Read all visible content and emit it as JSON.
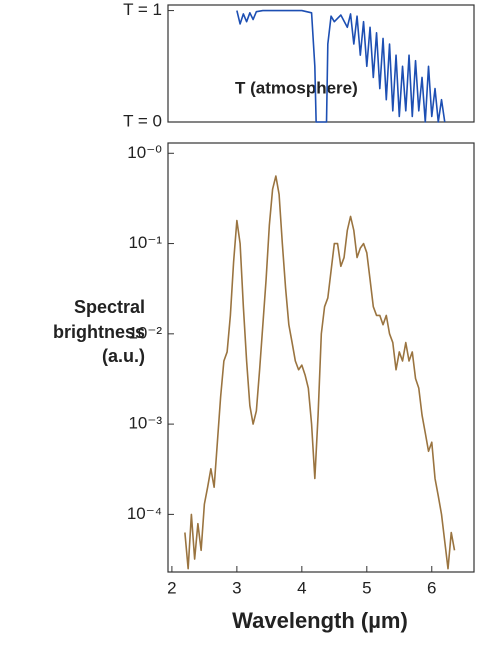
{
  "chart_data": [
    {
      "type": "line",
      "annotation": "T (atmosphere)",
      "x": [
        3.0,
        3.05,
        3.1,
        3.15,
        3.2,
        3.25,
        3.3,
        3.4,
        3.6,
        3.8,
        4.0,
        4.15,
        4.2,
        4.22,
        4.38,
        4.4,
        4.45,
        4.5,
        4.6,
        4.7,
        4.75,
        4.8,
        4.85,
        4.9,
        4.95,
        5.0,
        5.05,
        5.1,
        5.15,
        5.2,
        5.25,
        5.3,
        5.35,
        5.4,
        5.45,
        5.5,
        5.55,
        5.6,
        5.65,
        5.7,
        5.75,
        5.8,
        5.85,
        5.9,
        5.95,
        6.0,
        6.05,
        6.1,
        6.15,
        6.2
      ],
      "values": [
        1,
        0.88,
        0.97,
        0.9,
        0.98,
        0.92,
        0.99,
        1,
        1,
        1,
        1,
        0.98,
        0.5,
        0,
        0,
        0.7,
        0.95,
        0.9,
        0.96,
        0.85,
        0.97,
        0.7,
        0.95,
        0.6,
        0.9,
        0.5,
        0.85,
        0.4,
        0.8,
        0.3,
        0.75,
        0.2,
        0.7,
        0.1,
        0.6,
        0.05,
        0.5,
        0.1,
        0.6,
        0.05,
        0.55,
        0.1,
        0.4,
        0,
        0.5,
        0.05,
        0.3,
        0,
        0.2,
        0
      ],
      "color": "#1d4fb3",
      "xlim": [
        1.94,
        6.65
      ],
      "ylim": [
        0,
        1.05
      ],
      "yticks": [
        {
          "value": 1,
          "label": "T = 1"
        },
        {
          "value": 0,
          "label": "T = 0"
        }
      ]
    },
    {
      "type": "line",
      "ylabel": [
        "Spectral",
        "brightness",
        "(a.u.)"
      ],
      "xlabel": "Wavelength (µm)",
      "x": [
        2.2,
        2.25,
        2.3,
        2.35,
        2.4,
        2.45,
        2.5,
        2.55,
        2.6,
        2.65,
        2.7,
        2.75,
        2.8,
        2.85,
        2.9,
        2.95,
        3.0,
        3.05,
        3.1,
        3.15,
        3.2,
        3.25,
        3.3,
        3.35,
        3.4,
        3.45,
        3.5,
        3.55,
        3.6,
        3.65,
        3.7,
        3.75,
        3.8,
        3.85,
        3.9,
        3.95,
        4.0,
        4.05,
        4.1,
        4.15,
        4.2,
        4.25,
        4.3,
        4.35,
        4.4,
        4.45,
        4.5,
        4.55,
        4.6,
        4.65,
        4.7,
        4.75,
        4.8,
        4.85,
        4.9,
        4.95,
        5.0,
        5.05,
        5.1,
        5.15,
        5.2,
        5.25,
        5.3,
        5.35,
        5.4,
        5.45,
        5.5,
        5.55,
        5.6,
        5.65,
        5.7,
        5.75,
        5.8,
        5.85,
        5.9,
        5.95,
        6.0,
        6.05,
        6.1,
        6.15,
        6.2,
        6.25,
        6.3,
        6.35
      ],
      "values": [
        6.3e-05,
        2.5e-05,
        0.0001,
        3.2e-05,
        7.9e-05,
        4e-05,
        0.00013,
        0.0002,
        0.00032,
        0.0002,
        0.00063,
        0.002,
        0.005,
        0.0063,
        0.016,
        0.063,
        0.18,
        0.1,
        0.02,
        0.005,
        0.0016,
        0.001,
        0.0014,
        0.004,
        0.0126,
        0.04,
        0.16,
        0.4,
        0.56,
        0.35,
        0.1,
        0.032,
        0.0126,
        0.008,
        0.005,
        0.004,
        0.0045,
        0.0035,
        0.0025,
        0.001,
        0.00025,
        0.00126,
        0.01,
        0.02,
        0.025,
        0.05,
        0.1,
        0.1,
        0.056,
        0.07,
        0.14,
        0.2,
        0.14,
        0.07,
        0.089,
        0.1,
        0.079,
        0.04,
        0.02,
        0.016,
        0.016,
        0.0126,
        0.016,
        0.01,
        0.008,
        0.004,
        0.0063,
        0.005,
        0.008,
        0.005,
        0.0063,
        0.0032,
        0.0025,
        0.00126,
        0.0008,
        0.0005,
        0.00063,
        0.00025,
        0.00016,
        0.0001,
        5e-05,
        2.5e-05,
        6.3e-05,
        4e-05
      ],
      "color": "#9a7440",
      "xlim": [
        1.94,
        6.65
      ],
      "ylim": [
        2.3e-05,
        1.3
      ],
      "ylog": true,
      "xticks": [
        2,
        3,
        4,
        5,
        6
      ],
      "yticks": [
        {
          "value": 1,
          "label": "10⁻⁰"
        },
        {
          "value": 0.1,
          "label": "10⁻¹"
        },
        {
          "value": 0.01,
          "label": "10⁻²"
        },
        {
          "value": 0.001,
          "label": "10⁻³"
        },
        {
          "value": 0.0001,
          "label": "10⁻⁴"
        }
      ]
    }
  ]
}
